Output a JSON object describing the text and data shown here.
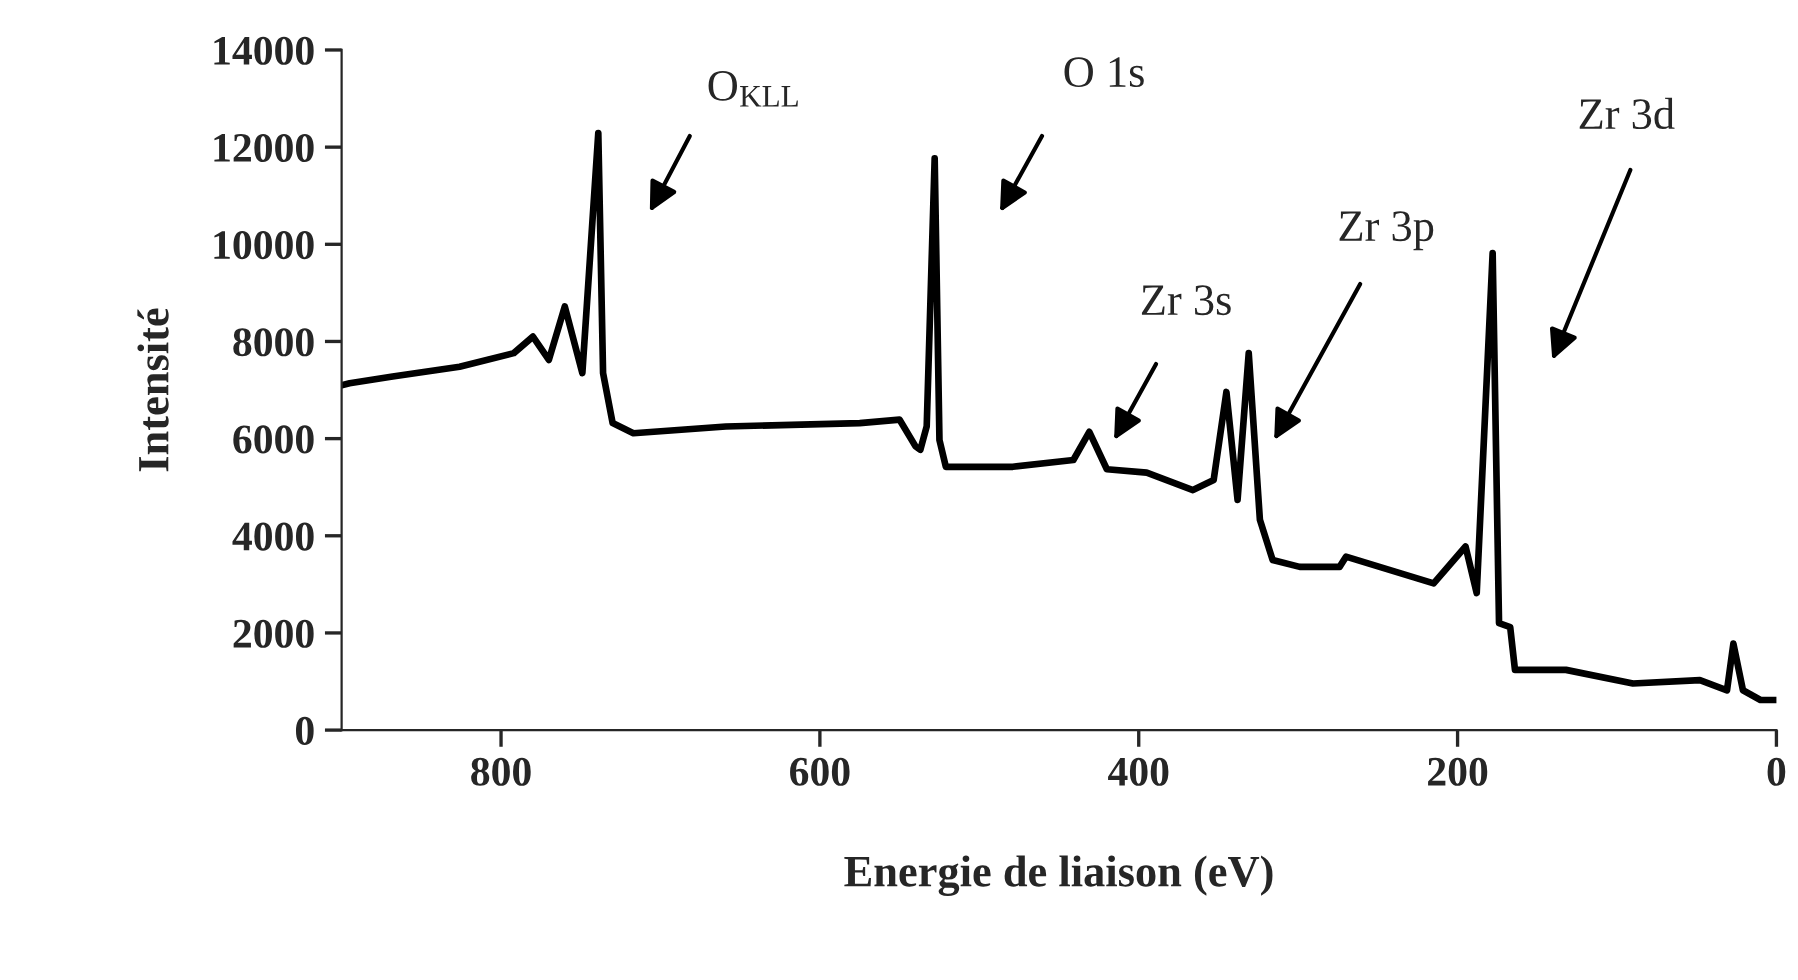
{
  "chart_data": {
    "type": "line",
    "xlabel": "Energie de liaison (eV)",
    "ylabel": "Intensité",
    "xlim": [
      900,
      0
    ],
    "xticks": [
      800,
      600,
      400,
      200,
      0
    ],
    "ylim": [
      0,
      14000
    ],
    "yticks": [
      0,
      2000,
      4000,
      6000,
      8000,
      10000,
      12000,
      14000
    ],
    "grid": false,
    "legend": false,
    "marker": "none",
    "line_style": "solid",
    "series": [
      {
        "color": "#000000",
        "x": [
          900,
          895,
          868,
          826,
          792,
          780,
          770,
          760,
          749,
          739,
          736,
          730,
          717,
          659,
          575,
          550,
          540,
          537,
          533,
          528,
          525,
          521,
          479,
          441,
          431,
          420,
          395,
          366,
          353,
          345,
          338,
          331,
          324,
          316,
          299,
          274,
          270,
          215,
          195,
          188,
          178,
          174,
          167,
          164,
          132,
          90,
          48,
          31,
          27,
          21,
          10,
          0
        ],
        "values": [
          7100,
          7140,
          7280,
          7480,
          7760,
          8100,
          7620,
          8720,
          7350,
          12290,
          7350,
          6320,
          6110,
          6250,
          6320,
          6390,
          5840,
          5770,
          6250,
          11770,
          5970,
          5420,
          5420,
          5560,
          6140,
          5370,
          5300,
          4940,
          5150,
          6960,
          4740,
          7760,
          4330,
          3500,
          3360,
          3360,
          3570,
          3020,
          3780,
          2820,
          9820,
          2200,
          2120,
          1240,
          1240,
          960,
          1030,
          820,
          1780,
          820,
          620,
          620
        ]
      }
    ],
    "annotations": [
      "O$_{KLL}$",
      "O 1s",
      "Zr 3s",
      "Zr 3p",
      "Zr 3d"
    ]
  }
}
